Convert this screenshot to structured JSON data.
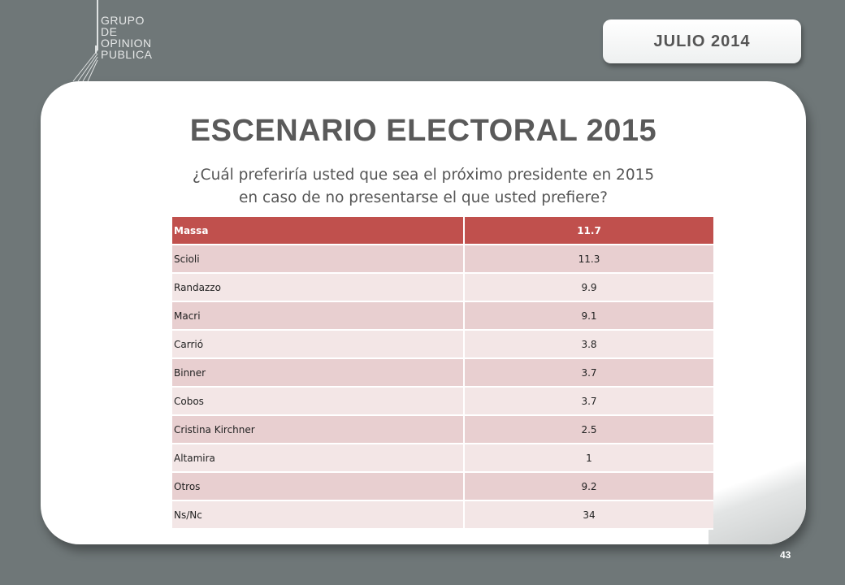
{
  "logo": {
    "lines": [
      "GRUPO",
      "DE",
      "OPINION",
      "PUBLICA"
    ]
  },
  "date_badge": "JULIO  2014",
  "title": "ESCENARIO ELECTORAL 2015",
  "question": {
    "line1": "¿Cuál preferiría usted que sea el próximo presidente en 2015",
    "line2": "en caso de no presentarse el que usted prefiere?"
  },
  "table": {
    "rows": [
      {
        "name": "Massa",
        "value": "11.7"
      },
      {
        "name": "Scioli",
        "value": "11.3"
      },
      {
        "name": "Randazzo",
        "value": "9.9"
      },
      {
        "name": "Macri",
        "value": "9.1"
      },
      {
        "name": "Carrió",
        "value": "3.8"
      },
      {
        "name": "Binner",
        "value": "3.7"
      },
      {
        "name": "Cobos",
        "value": "3.7"
      },
      {
        "name": "Cristina Kirchner",
        "value": "2.5"
      },
      {
        "name": "Altamira",
        "value": "1"
      },
      {
        "name": "Otros",
        "value": "9.2"
      },
      {
        "name": "Ns/Nc",
        "value": "34"
      }
    ]
  },
  "page_number": "43",
  "colors": {
    "header_row": "#c0504d",
    "row_dark": "#e8cfd0",
    "row_light": "#f3e6e6",
    "background": "#6f7778"
  }
}
